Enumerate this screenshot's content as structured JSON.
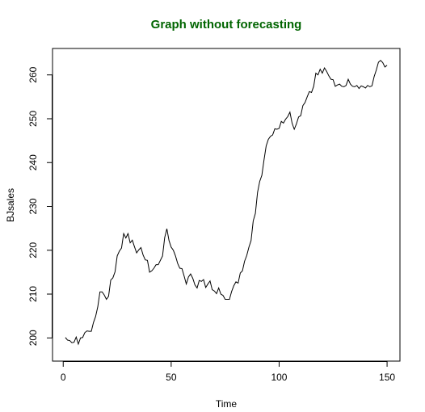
{
  "chart_data": {
    "type": "line",
    "title": "Graph without forecasting",
    "title_color": "#006400",
    "xlabel": "Time",
    "ylabel": "BJsales",
    "xlim": [
      -4.96,
      155.96
    ],
    "ylim": [
      194.71,
      266.03
    ],
    "xticks": [
      0,
      50,
      100,
      150
    ],
    "yticks": [
      200,
      210,
      220,
      230,
      240,
      250,
      260
    ],
    "line_color": "#000000",
    "grid": false,
    "series": [
      {
        "x": [
          1,
          2,
          3,
          4,
          5,
          6,
          7,
          8,
          9,
          10,
          11,
          12,
          13,
          14,
          15,
          16,
          17,
          18,
          19,
          20,
          21,
          22,
          23,
          24,
          25,
          26,
          27,
          28,
          29,
          30,
          31,
          32,
          33,
          34,
          35,
          36,
          37,
          38,
          39,
          40,
          41,
          42,
          43,
          44,
          45,
          46,
          47,
          48,
          49,
          50,
          51,
          52,
          53,
          54,
          55,
          56,
          57,
          58,
          59,
          60,
          61,
          62,
          63,
          64,
          65,
          66,
          67,
          68,
          69,
          70,
          71,
          72,
          73,
          74,
          75,
          76,
          77,
          78,
          79,
          80,
          81,
          82,
          83,
          84,
          85,
          86,
          87,
          88,
          89,
          90,
          91,
          92,
          93,
          94,
          95,
          96,
          97,
          98,
          99,
          100,
          101,
          102,
          103,
          104,
          105,
          106,
          107,
          108,
          109,
          110,
          111,
          112,
          113,
          114,
          115,
          116,
          117,
          118,
          119,
          120,
          121,
          122,
          123,
          124,
          125,
          126,
          127,
          128,
          129,
          130,
          131,
          132,
          133,
          134,
          135,
          136,
          137,
          138,
          139,
          140,
          141,
          142,
          143,
          144,
          145,
          146,
          147,
          148,
          149,
          150
        ],
        "values": [
          200.1,
          199.5,
          199.4,
          198.9,
          199.0,
          200.2,
          198.6,
          200.0,
          200.1,
          201.2,
          201.6,
          201.5,
          201.5,
          203.5,
          204.9,
          207.1,
          210.5,
          210.5,
          209.8,
          208.8,
          209.5,
          213.2,
          213.7,
          215.1,
          218.7,
          219.8,
          220.5,
          223.8,
          222.8,
          223.8,
          221.7,
          222.3,
          220.8,
          219.4,
          220.1,
          220.6,
          218.9,
          217.8,
          217.7,
          215.0,
          215.3,
          215.9,
          216.7,
          216.7,
          217.7,
          218.7,
          222.9,
          224.9,
          222.2,
          220.7,
          220.0,
          218.7,
          217.0,
          215.9,
          215.8,
          214.1,
          212.3,
          213.9,
          214.6,
          213.6,
          212.1,
          211.4,
          213.1,
          212.9,
          213.3,
          211.5,
          212.3,
          213.0,
          211.0,
          210.7,
          210.1,
          211.4,
          210.0,
          209.7,
          208.8,
          208.8,
          208.8,
          210.6,
          211.9,
          212.8,
          212.5,
          214.8,
          215.3,
          217.5,
          218.8,
          220.7,
          222.2,
          226.7,
          228.4,
          233.2,
          235.7,
          237.1,
          240.6,
          243.8,
          245.3,
          246.0,
          246.3,
          247.7,
          247.6,
          247.8,
          249.4,
          249.0,
          249.9,
          250.5,
          251.5,
          249.0,
          247.6,
          248.8,
          250.4,
          250.7,
          253.0,
          253.7,
          255.0,
          256.2,
          256.0,
          257.4,
          260.4,
          260.0,
          261.3,
          260.4,
          261.6,
          260.8,
          259.8,
          259.0,
          258.9,
          257.4,
          257.7,
          257.9,
          257.4,
          257.3,
          257.6,
          259.0,
          257.9,
          257.4,
          257.3,
          257.6,
          256.9,
          257.5,
          257.3,
          257.0,
          257.6,
          257.3,
          257.5,
          259.6,
          261.1,
          262.9,
          263.3,
          262.8,
          261.8,
          262.2
        ]
      }
    ]
  }
}
